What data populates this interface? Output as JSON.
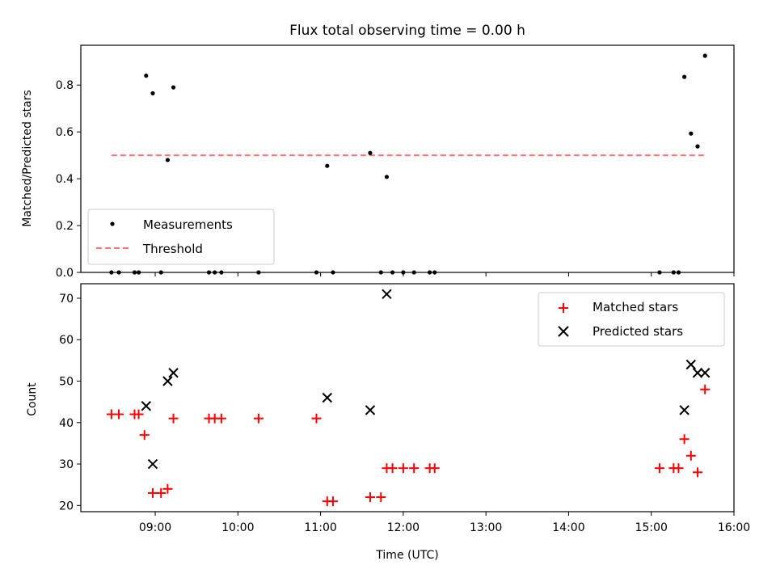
{
  "chart_data": [
    {
      "type": "scatter",
      "title": "Flux total observing time = 0.00 h",
      "xlabel": "",
      "ylabel": "Matched/Predicted stars",
      "xlim": [
        8.1,
        16.0
      ],
      "ylim": [
        0.0,
        0.97
      ],
      "yticks": [
        0.0,
        0.2,
        0.4,
        0.6,
        0.8
      ],
      "ytick_labels": [
        "0.0",
        "0.2",
        "0.4",
        "0.6",
        "0.8"
      ],
      "series": [
        {
          "name": "Measurements",
          "color": "#000000",
          "x": [
            8.47,
            8.56,
            8.75,
            8.8,
            8.89,
            8.97,
            9.07,
            9.15,
            9.22,
            9.65,
            9.72,
            9.8,
            10.25,
            10.95,
            11.08,
            11.15,
            11.6,
            11.73,
            11.8,
            11.87,
            12.0,
            12.13,
            12.32,
            12.38,
            15.1,
            15.27,
            15.33,
            15.4,
            15.48,
            15.56,
            15.65
          ],
          "y": [
            0,
            0,
            0,
            0,
            0.84,
            0.765,
            0,
            0.48,
            0.79,
            0,
            0,
            0,
            0,
            0,
            0.455,
            0,
            0.51,
            0,
            0.408,
            0,
            0,
            0,
            0,
            0,
            0,
            0,
            0,
            0.835,
            0.593,
            0.538,
            0.925
          ]
        }
      ],
      "threshold": {
        "name": "Threshold",
        "color": "#ff7070",
        "value": 0.5,
        "x_range": [
          8.47,
          15.65
        ]
      },
      "legend_position": "lower-left"
    },
    {
      "type": "scatter",
      "title": "",
      "xlabel": "Time (UTC)",
      "ylabel": "Count",
      "xlim": [
        8.1,
        16.0
      ],
      "ylim": [
        18.5,
        73.5
      ],
      "xticks": [
        9,
        10,
        11,
        12,
        13,
        14,
        15,
        16
      ],
      "xtick_labels": [
        "09:00",
        "10:00",
        "11:00",
        "12:00",
        "13:00",
        "14:00",
        "15:00",
        "16:00"
      ],
      "yticks": [
        20,
        30,
        40,
        50,
        60,
        70
      ],
      "ytick_labels": [
        "20",
        "30",
        "40",
        "50",
        "60",
        "70"
      ],
      "series": [
        {
          "name": "Matched stars",
          "marker": "plus",
          "color": "#ff0000",
          "x": [
            8.47,
            8.56,
            8.75,
            8.8,
            8.87,
            8.97,
            9.07,
            9.15,
            9.22,
            9.65,
            9.72,
            9.8,
            10.25,
            10.95,
            11.08,
            11.15,
            11.6,
            11.73,
            11.8,
            11.87,
            12.0,
            12.13,
            12.32,
            12.38,
            15.1,
            15.27,
            15.33,
            15.4,
            15.48,
            15.56,
            15.65
          ],
          "y": [
            42,
            42,
            42,
            42,
            37,
            23,
            23,
            24,
            41,
            41,
            41,
            41,
            41,
            41,
            21,
            21,
            22,
            22,
            29,
            29,
            29,
            29,
            29,
            29,
            29,
            29,
            29,
            36,
            32,
            28,
            48
          ]
        },
        {
          "name": "Predicted stars",
          "marker": "x",
          "color": "#000000",
          "x": [
            8.89,
            8.97,
            9.15,
            9.22,
            11.08,
            11.6,
            11.8,
            15.4,
            15.48,
            15.56,
            15.65
          ],
          "y": [
            44,
            30,
            50,
            52,
            46,
            43,
            71,
            43,
            54,
            52,
            52
          ]
        }
      ],
      "legend_position": "upper-right"
    }
  ]
}
